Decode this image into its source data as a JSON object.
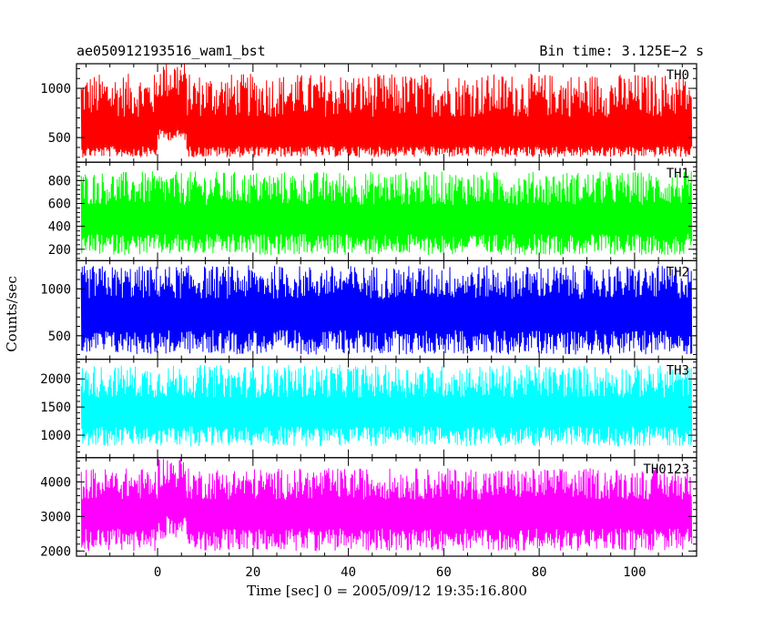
{
  "header": {
    "title": "ae050912193516_wam1_bst",
    "bin_time": "Bin time: 3.125E−2 s"
  },
  "chart_data": {
    "type": "line",
    "title": "ae050912193516_wam1_bst",
    "xlabel": "Time [sec] 0 = 2005/09/12 19:35:16.800",
    "ylabel": "Counts/sec",
    "xlim": [
      -17,
      113
    ],
    "x_ticks": [
      0,
      20,
      40,
      60,
      80,
      100
    ],
    "x_range_data": [
      -16,
      112
    ],
    "grid": false,
    "panels": [
      {
        "name": "TH0",
        "color": "#ff0000",
        "ylim": [
          250,
          1250
        ],
        "yticks": [
          500,
          1000
        ],
        "mean": 470,
        "low": 300,
        "high": 1150
      },
      {
        "name": "TH1",
        "color": "#00ff00",
        "ylim": [
          100,
          960
        ],
        "yticks": [
          200,
          400,
          600,
          800
        ],
        "mean": 430,
        "low": 150,
        "high": 880
      },
      {
        "name": "TH2",
        "color": "#0000ff",
        "ylim": [
          250,
          1300
        ],
        "yticks": [
          500,
          1000
        ],
        "mean": 700,
        "low": 300,
        "high": 1250
      },
      {
        "name": "TH3",
        "color": "#00ffff",
        "ylim": [
          600,
          2350
        ],
        "yticks": [
          1000,
          1500,
          2000
        ],
        "mean": 1350,
        "low": 800,
        "high": 2250
      },
      {
        "name": "TH0123",
        "color": "#ff00ff",
        "ylim": [
          1850,
          4700
        ],
        "yticks": [
          2000,
          3000,
          4000
        ],
        "mean": 3000,
        "low": 2000,
        "high": 4400
      }
    ]
  }
}
